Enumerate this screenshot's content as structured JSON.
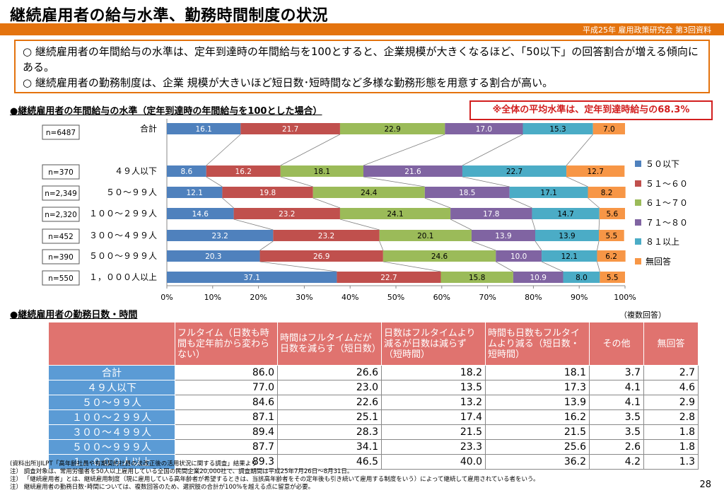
{
  "header": {
    "title": "継続雇用者の給与水準、勤務時間制度の状況",
    "subtitle": "平成25年 雇用政策研究会 第3回資料"
  },
  "summary": {
    "line1": "○ 継続雇用者の年間給与の水準は、定年到達時の年間給与を100とすると、企業規模が大きくなるほど、「50以下」の回答割合が増える傾向にある。",
    "line2": "○ 継続雇用者の勤務制度は、企業 規模が大きいほど短日数･短時間など多様な勤務形態を用意する割合が高い。"
  },
  "section1": {
    "heading": "●継続雇用者の年間給与の水準（定年到達時の年間給与を100とした場合）",
    "note_box": "※全体の平均水準は、定年到達時給与の68.3%"
  },
  "chart_data": {
    "type": "bar",
    "orientation": "horizontal",
    "stacked": true,
    "categories": [
      "合計",
      "４９人以下",
      "５０～９９人",
      "１００～２９９人",
      "３００～４９９人",
      "５００～９９９人",
      "１，０００人以上"
    ],
    "n_labels": [
      "n=6487",
      "n=370",
      "n=2,349",
      "n=2,320",
      "n=452",
      "n=390",
      "n=550"
    ],
    "series": [
      {
        "name": "５０以下",
        "color": "#4f81bd",
        "values": [
          16.1,
          8.6,
          12.1,
          14.6,
          23.2,
          20.3,
          37.1
        ]
      },
      {
        "name": "５１～６０",
        "color": "#c0504d",
        "values": [
          21.7,
          16.2,
          19.8,
          23.2,
          23.2,
          26.9,
          22.7
        ]
      },
      {
        "name": "６１～７０",
        "color": "#9bbb59",
        "values": [
          22.9,
          18.1,
          24.4,
          24.1,
          20.1,
          24.6,
          15.8
        ]
      },
      {
        "name": "７１～８０",
        "color": "#8064a2",
        "values": [
          17.0,
          21.6,
          18.5,
          17.8,
          13.9,
          10.0,
          10.9
        ]
      },
      {
        "name": "８１以上",
        "color": "#4bacc6",
        "values": [
          15.3,
          22.7,
          17.1,
          14.7,
          13.9,
          12.1,
          8.0
        ]
      },
      {
        "name": "無回答",
        "color": "#f79646",
        "values": [
          7.0,
          12.7,
          8.2,
          5.6,
          5.5,
          6.2,
          5.5
        ]
      }
    ],
    "xlim": [
      0,
      100
    ],
    "xticks": [
      "0%",
      "10%",
      "20%",
      "30%",
      "40%",
      "50%",
      "60%",
      "70%",
      "80%",
      "90%",
      "100%"
    ],
    "legend": "right"
  },
  "section2": {
    "heading": "●継続雇用者の勤務日数・時間",
    "note": "（複数回答）",
    "columns": [
      "フルタイム（日数も時間も定年前から変わらない）",
      "時間はフルタイムだが日数を減らす（短日数）",
      "日数はフルタイムより減るが日数は減らず（短時間）",
      "時間も日数もフルタイムより減る（短日数・短時間）",
      "その他",
      "無回答"
    ],
    "rows": [
      {
        "label": "合計",
        "values": [
          "86.0",
          "26.6",
          "18.2",
          "18.1",
          "3.7",
          "2.7"
        ]
      },
      {
        "label": "４９人以下",
        "values": [
          "77.0",
          "23.0",
          "13.5",
          "17.3",
          "4.1",
          "4.6"
        ]
      },
      {
        "label": "５０～９９人",
        "values": [
          "84.6",
          "22.6",
          "13.2",
          "13.9",
          "4.1",
          "2.9"
        ]
      },
      {
        "label": "１００～２９９人",
        "values": [
          "87.1",
          "25.1",
          "17.4",
          "16.2",
          "3.5",
          "2.8"
        ]
      },
      {
        "label": "３００～４９９人",
        "values": [
          "89.4",
          "28.3",
          "21.5",
          "21.5",
          "3.5",
          "1.8"
        ]
      },
      {
        "label": "５００～９９９人",
        "values": [
          "87.7",
          "34.1",
          "23.3",
          "25.6",
          "2.6",
          "1.8"
        ]
      },
      {
        "label": "１，０００人以上",
        "values": [
          "89.3",
          "46.5",
          "40.0",
          "36.2",
          "4.2",
          "1.3"
        ]
      }
    ]
  },
  "notes": [
    "(資料出所)JILPT「高年齢社員や有期契約社員の法改正後の活用状況に関する調査」結果より",
    "注） 調査対象は、常用労働者を50人以上雇用している全国の民間企業20,000社で、調査期間は平成25年7月26日～8月31日。",
    "注） 「継続雇用者」とは、継続雇用制度（現に雇用している高年齢者が希望するときは、当該高年齢者をその定年後も引き続いて雇用する制度をいう）によって継続して雇用されている者をいう。",
    "注） 継続雇用者の勤務日数･時間については、複数回答のため、選択肢の合計が100%を越える点に留意が必要。"
  ],
  "page_number": "28"
}
